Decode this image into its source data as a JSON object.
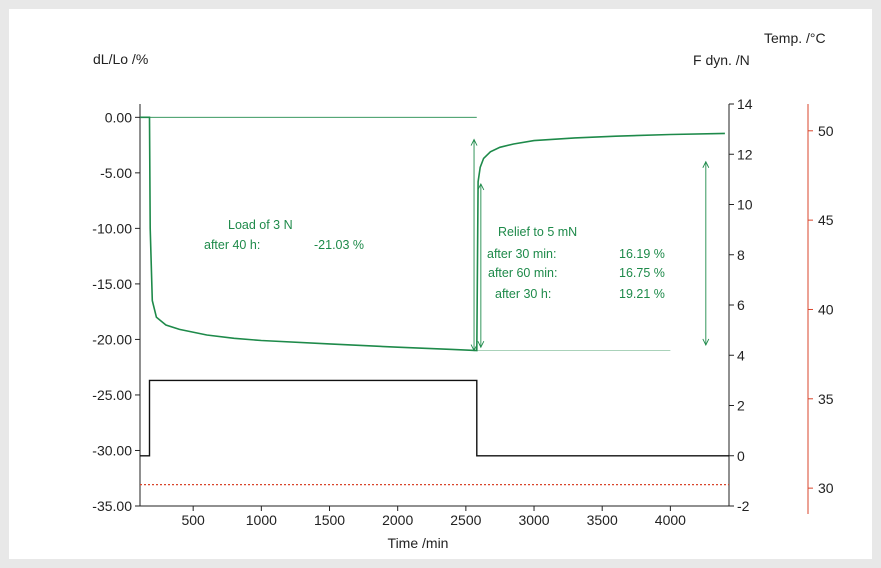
{
  "chart_data": {
    "type": "line",
    "xlabel": "Time /min",
    "ylabel_left": "dL/Lo /%",
    "ylabel_right1": "F dyn. /N",
    "ylabel_right2": "Temp. /°C",
    "xlim": [
      110,
      4430
    ],
    "x_ticks": [
      500,
      1000,
      1500,
      2000,
      2500,
      3000,
      3500,
      4000
    ],
    "ylim_left": [
      -35,
      1.2
    ],
    "y_ticks_left": [
      "0.00",
      "-5.00",
      "-10.00",
      "-15.00",
      "-20.00",
      "-25.00",
      "-30.00",
      "-35.00"
    ],
    "ylim_right1": [
      -2,
      14
    ],
    "y_ticks_right1": [
      14,
      12,
      10,
      8,
      6,
      4,
      2,
      0,
      -2
    ],
    "ylim_right2": [
      29,
      51.5
    ],
    "y_ticks_right2": [
      50,
      45,
      40,
      35,
      30
    ],
    "colors": {
      "strain": "#1e8a4a",
      "force": "#111111",
      "temp": "#d9452b",
      "annotation": "#1e8a4a"
    },
    "series": [
      {
        "axis": "left",
        "color": "#1e8a4a",
        "x": [
          110,
          180,
          185,
          200,
          230,
          300,
          400,
          600,
          800,
          1000,
          1500,
          2000,
          2400,
          2580,
          2590,
          2605,
          2630,
          2680,
          2750,
          2850,
          3000,
          3300,
          3600,
          4000,
          4400
        ],
        "y": [
          0,
          0,
          -10,
          -16.5,
          -18,
          -18.7,
          -19.1,
          -19.6,
          -19.9,
          -20.1,
          -20.4,
          -20.7,
          -20.9,
          -21.0,
          -5.8,
          -4.5,
          -3.7,
          -3.1,
          -2.7,
          -2.4,
          -2.1,
          -1.85,
          -1.7,
          -1.55,
          -1.45
        ]
      },
      {
        "axis": "right1",
        "color": "#111111",
        "x": [
          110,
          180,
          180,
          2580,
          2580,
          4430
        ],
        "y": [
          0,
          0,
          3,
          3,
          0,
          0
        ]
      },
      {
        "axis": "right2",
        "color": "#d9452b",
        "style": "dotted",
        "x": [
          110,
          4430
        ],
        "y": [
          30.2,
          30.2
        ]
      }
    ],
    "annotations": {
      "load_title": "Load of 3 N",
      "load_label": "after 40 h:",
      "load_value": "-21.03 %",
      "relief_title": "Relief to 5 mN",
      "relief_rows": [
        {
          "label": "after 30 min:",
          "value": "16.19 %"
        },
        {
          "label": "after 60 min:",
          "value": "16.75 %"
        },
        {
          "label": "after 30 h:",
          "value": "19.21 %"
        }
      ]
    }
  }
}
